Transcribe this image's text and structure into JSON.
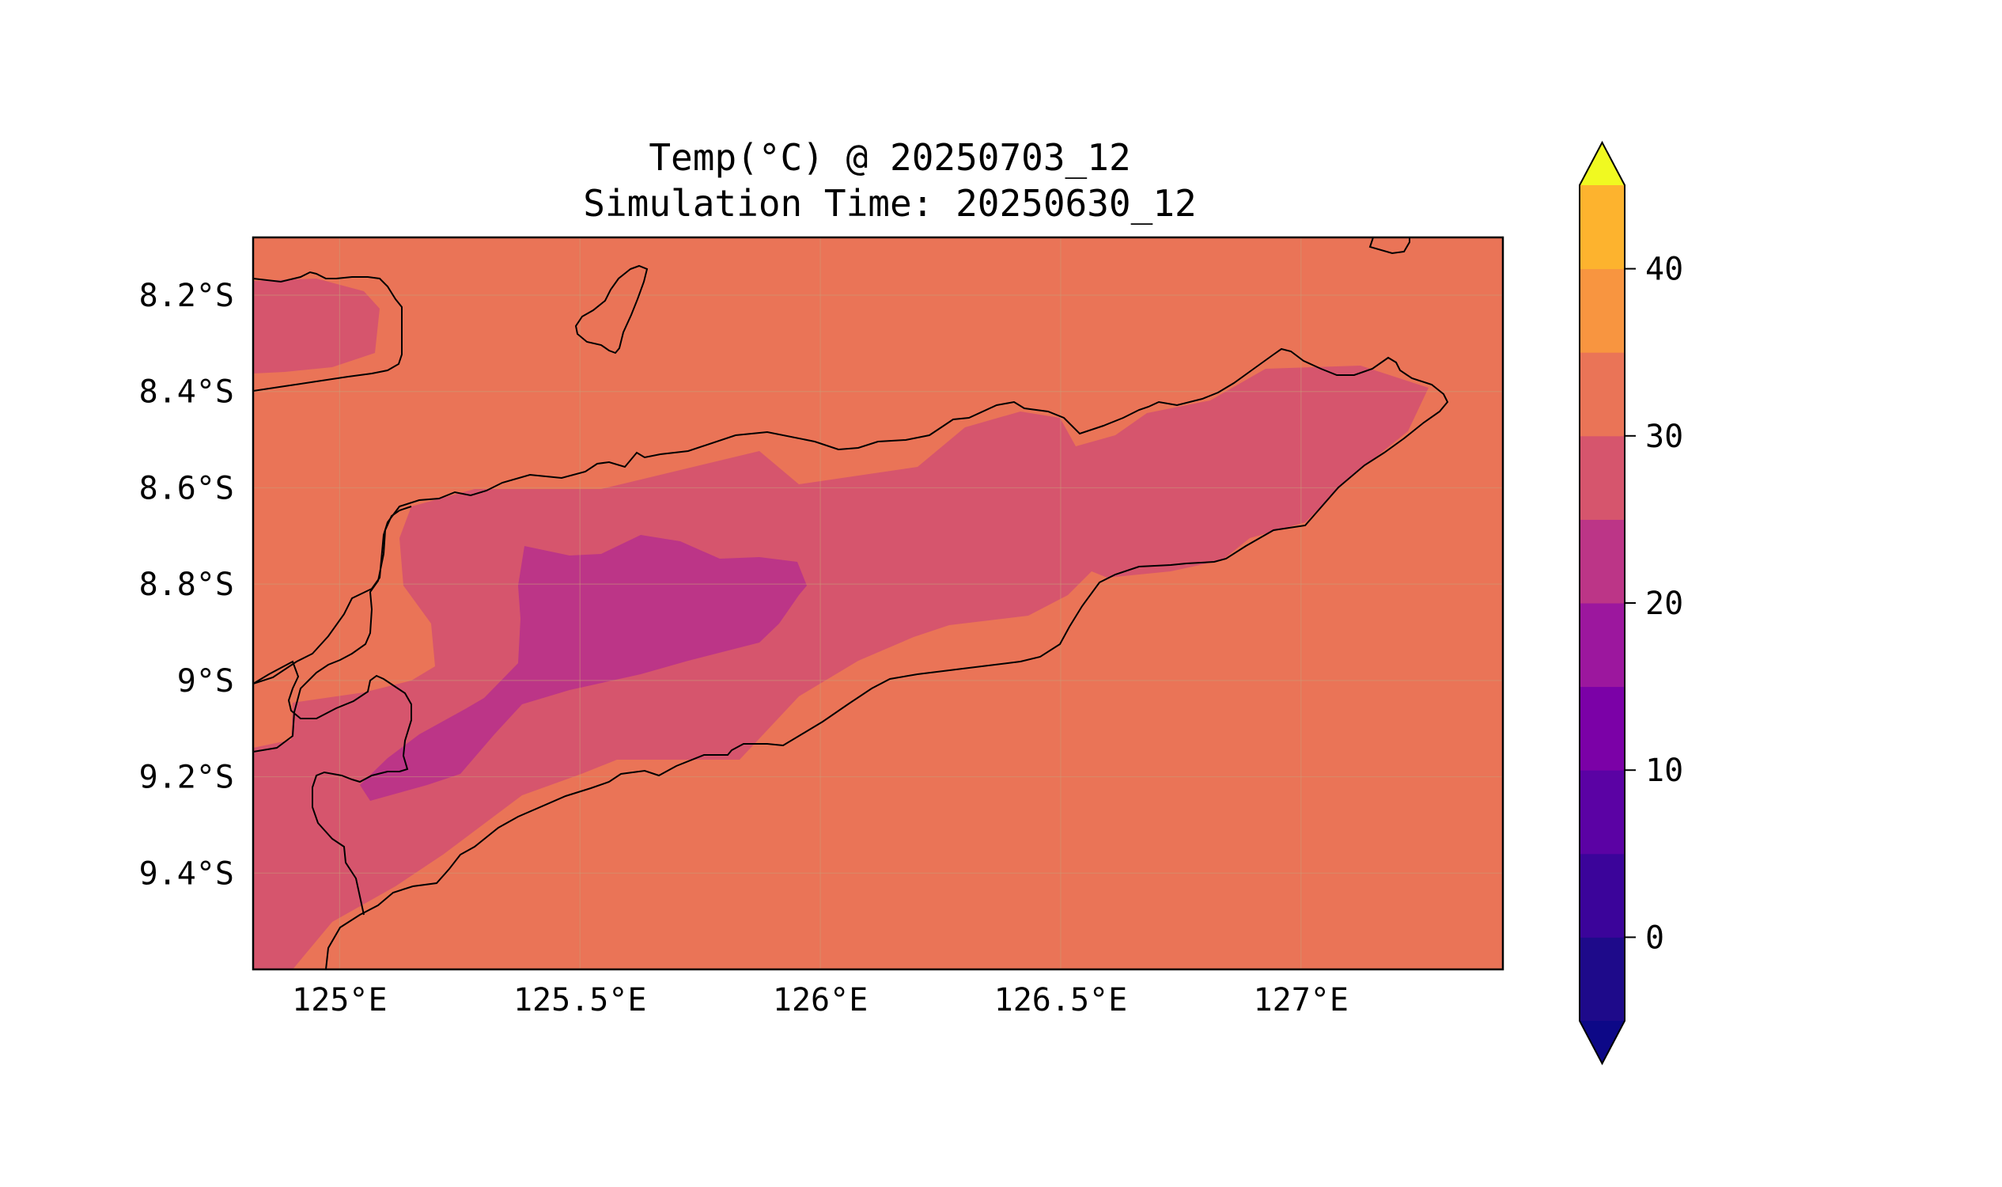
{
  "title": {
    "line1": "Temp(°C) @ 20250703_12",
    "line2": "Simulation Time: 20250630_12"
  },
  "map": {
    "extent": {
      "lon": [
        124.82,
        127.42
      ],
      "lat": [
        -9.6,
        -8.08
      ]
    },
    "x_ticks": [
      {
        "value": 125.0,
        "label": "125°E"
      },
      {
        "value": 125.5,
        "label": "125.5°E"
      },
      {
        "value": 126.0,
        "label": "126°E"
      },
      {
        "value": 126.5,
        "label": "126.5°E"
      },
      {
        "value": 127.0,
        "label": "127°E"
      }
    ],
    "y_ticks": [
      {
        "value": -8.2,
        "label": "8.2°S"
      },
      {
        "value": -8.4,
        "label": "8.4°S"
      },
      {
        "value": -8.6,
        "label": "8.6°S"
      },
      {
        "value": -8.8,
        "label": "8.8°S"
      },
      {
        "value": -9.0,
        "label": "9°S"
      },
      {
        "value": -9.2,
        "label": "9.2°S"
      },
      {
        "value": -9.4,
        "label": "9.4°S"
      }
    ],
    "gridlines": true,
    "background_level": "25-30"
  },
  "colorbar": {
    "extend": "both",
    "levels": [
      -5,
      0,
      5,
      10,
      15,
      20,
      25,
      30,
      35,
      40,
      45
    ],
    "colors": [
      "#1e0a8a",
      "#3b049a",
      "#5b02a4",
      "#7b01a7",
      "#9c179e",
      "#bc3587",
      "#d6556d",
      "#ea7457",
      "#f89540",
      "#fdb32e",
      "#f3e125"
    ],
    "under_color": "#0d0887",
    "over_color": "#f0f921",
    "ticks": [
      {
        "value": 0,
        "label": "0"
      },
      {
        "value": 10,
        "label": "10"
      },
      {
        "value": 20,
        "label": "20"
      },
      {
        "value": 30,
        "label": "30"
      },
      {
        "value": 40,
        "label": "40"
      }
    ]
  }
}
